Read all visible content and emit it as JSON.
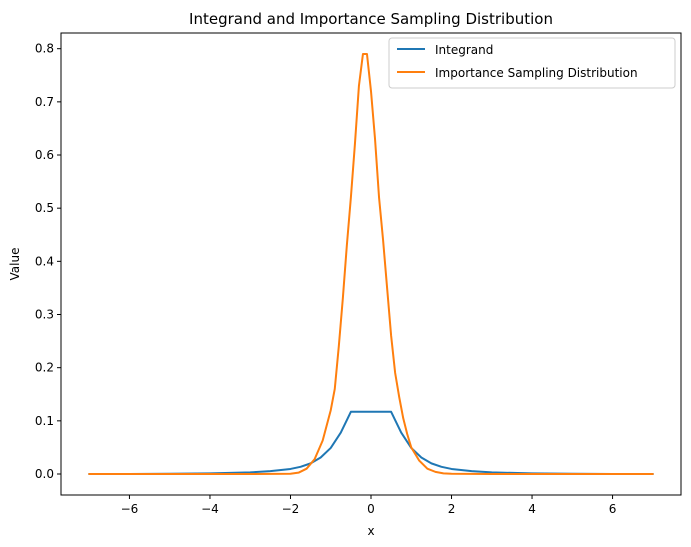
{
  "chart_data": {
    "type": "line",
    "title": "Integrand and Importance Sampling Distribution",
    "xlabel": "x",
    "ylabel": "Value",
    "xlim": [
      -7.7,
      7.7
    ],
    "ylim": [
      -0.0395,
      0.8295
    ],
    "xticks": [
      -6,
      -4,
      -2,
      0,
      2,
      4,
      6
    ],
    "yticks": [
      0.0,
      0.1,
      0.2,
      0.3,
      0.4,
      0.5,
      0.6,
      0.7,
      0.8
    ],
    "xtick_labels": [
      "−6",
      "−4",
      "−2",
      "0",
      "2",
      "4",
      "6"
    ],
    "ytick_labels": [
      "0.0",
      "0.1",
      "0.2",
      "0.3",
      "0.4",
      "0.5",
      "0.6",
      "0.7",
      "0.8"
    ],
    "grid": false,
    "legend_position": "top-right",
    "series": [
      {
        "name": "Integrand",
        "color": "#1f77b4",
        "x": [
          -7,
          -6,
          -5,
          -4,
          -3,
          -2.5,
          -2,
          -1.75,
          -1.5,
          -1.25,
          -1,
          -0.75,
          -0.5,
          0,
          0.5,
          0.75,
          1,
          1.25,
          1.5,
          1.75,
          2,
          2.5,
          3,
          4,
          5,
          6,
          7
        ],
        "y": [
          0.0,
          0.0,
          0.0005,
          0.0012,
          0.003,
          0.0055,
          0.0095,
          0.0135,
          0.02,
          0.031,
          0.049,
          0.078,
          0.117,
          0.117,
          0.117,
          0.078,
          0.049,
          0.031,
          0.02,
          0.0135,
          0.0095,
          0.0055,
          0.003,
          0.0012,
          0.0005,
          0.0,
          0.0
        ]
      },
      {
        "name": "Importance Sampling Distribution",
        "color": "#ff7f0e",
        "x": [
          -7,
          -3,
          -2,
          -1.8,
          -1.6,
          -1.4,
          -1.2,
          -1.0,
          -0.9,
          -0.8,
          -0.7,
          -0.6,
          -0.5,
          -0.4,
          -0.3,
          -0.2,
          -0.1,
          0,
          0.1,
          0.2,
          0.3,
          0.4,
          0.5,
          0.6,
          0.7,
          0.8,
          0.9,
          1.0,
          1.2,
          1.4,
          1.6,
          1.8,
          2,
          3,
          7
        ],
        "y": [
          0.0,
          0.0,
          0.0005,
          0.0025,
          0.01,
          0.028,
          0.063,
          0.12,
          0.16,
          0.24,
          0.33,
          0.43,
          0.52,
          0.62,
          0.73,
          0.79,
          0.79,
          0.72,
          0.63,
          0.52,
          0.44,
          0.35,
          0.26,
          0.19,
          0.145,
          0.105,
          0.075,
          0.05,
          0.025,
          0.01,
          0.004,
          0.0012,
          0.0005,
          0.0,
          0.0
        ]
      }
    ]
  }
}
